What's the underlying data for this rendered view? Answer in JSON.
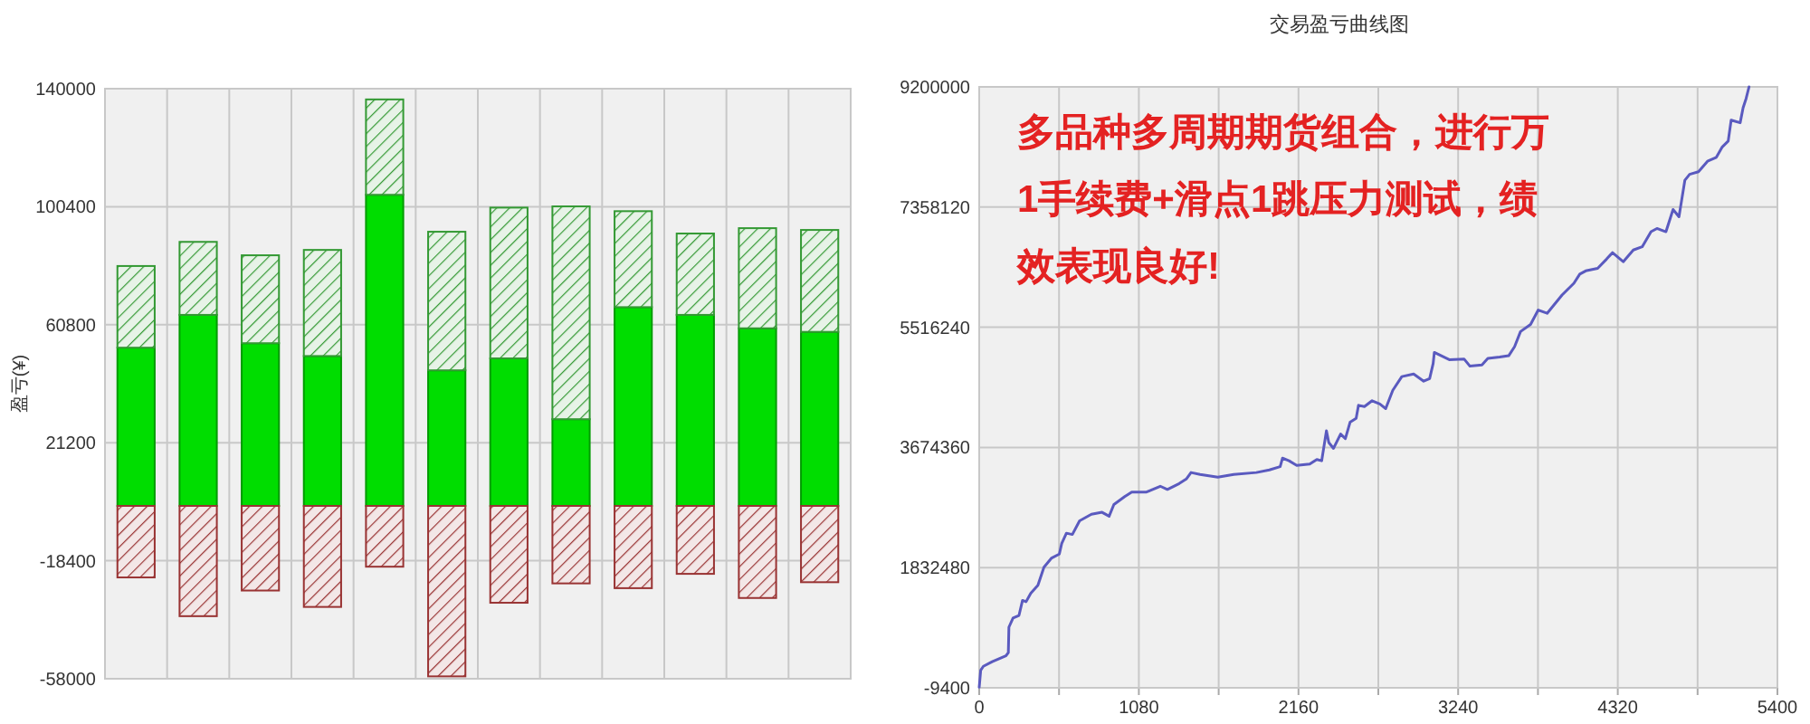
{
  "chart_data": [
    {
      "type": "bar",
      "stacked": true,
      "ylabel": "盈亏(¥)",
      "categories": [
        null,
        null,
        null,
        null,
        null,
        null,
        null,
        null,
        null,
        null,
        null,
        null
      ],
      "ylim": [
        -58000,
        140000
      ],
      "yticks": [
        -58000,
        -18400,
        21200,
        60800,
        100400,
        140000
      ],
      "grid": true,
      "series": [
        {
          "color": "#00dd00",
          "values": [
            53100,
            64100,
            54600,
            50300,
            104400,
            45500,
            49500,
            29100,
            66700,
            64100,
            59600,
            58400
          ]
        },
        {
          "color": "#339933",
          "values": [
            27400,
            24500,
            29500,
            35600,
            32000,
            46500,
            50600,
            71400,
            32200,
            27300,
            33600,
            34200
          ]
        },
        {
          "color": "#993333",
          "values": [
            -24000,
            -37000,
            -28400,
            -33900,
            -20400,
            -57200,
            -32500,
            -26000,
            -27600,
            -22800,
            -30900,
            -25600
          ]
        }
      ]
    },
    {
      "type": "line",
      "title": "交易盈亏曲线图",
      "xlim": [
        0,
        5400
      ],
      "xticks": [
        0,
        {
          "value": 540,
          "label": null
        },
        1080,
        {
          "value": 1620,
          "label": null
        },
        2160,
        {
          "value": 2700,
          "label": null
        },
        3240,
        {
          "value": 3780,
          "label": null
        },
        4320,
        {
          "value": 4860,
          "label": null
        },
        5400
      ],
      "ylim": [
        -9400,
        9200000
      ],
      "yticks": [
        -9400,
        1832480,
        3674360,
        5516240,
        7358120,
        9200000
      ],
      "grid": true,
      "annotations": [
        "多品种多周期期货组合，进行万1手续费+滑点1跳压力测试，绩效表现良好!"
      ],
      "x": [
        0,
        10,
        28,
        88,
        181,
        197,
        201,
        229,
        269,
        293,
        317,
        349,
        397,
        438,
        490,
        542,
        558,
        590,
        630,
        679,
        759,
        831,
        879,
        911,
        984,
        1032,
        1132,
        1225,
        1273,
        1353,
        1401,
        1433,
        1494,
        1614,
        1722,
        1875,
        1963,
        2036,
        2052,
        2096,
        2148,
        2236,
        2284,
        2317,
        2349,
        2365,
        2397,
        2445,
        2477,
        2509,
        2550,
        2566,
        2606,
        2658,
        2710,
        2750,
        2798,
        2859,
        2939,
        3007,
        3047,
        3071,
        3079,
        3180,
        3280,
        3320,
        3401,
        3441,
        3521,
        3582,
        3622,
        3662,
        3730,
        3782,
        3842,
        3943,
        4023,
        4063,
        4103,
        4184,
        4244,
        4284,
        4357,
        4425,
        4485,
        4545,
        4585,
        4646,
        4694,
        4734,
        4774,
        4806,
        4866,
        4927,
        4987,
        5027,
        5067,
        5087,
        5148,
        5168,
        5188,
        5208
      ],
      "series": [
        {
          "color": "#5a5abf",
          "values": [
            0,
            260000,
            320000,
            390000,
            480000,
            530000,
            920000,
            1060000,
            1100000,
            1330000,
            1310000,
            1440000,
            1560000,
            1840000,
            1980000,
            2040000,
            2200000,
            2360000,
            2340000,
            2550000,
            2650000,
            2680000,
            2620000,
            2800000,
            2920000,
            2990000,
            2990000,
            3080000,
            3030000,
            3120000,
            3190000,
            3290000,
            3260000,
            3220000,
            3260000,
            3290000,
            3330000,
            3380000,
            3510000,
            3470000,
            3400000,
            3420000,
            3490000,
            3470000,
            3930000,
            3750000,
            3660000,
            3880000,
            3810000,
            4060000,
            4120000,
            4320000,
            4300000,
            4390000,
            4340000,
            4270000,
            4550000,
            4760000,
            4800000,
            4690000,
            4730000,
            4960000,
            5130000,
            5020000,
            5030000,
            4920000,
            4940000,
            5040000,
            5060000,
            5080000,
            5220000,
            5450000,
            5560000,
            5780000,
            5730000,
            6010000,
            6190000,
            6330000,
            6380000,
            6420000,
            6560000,
            6660000,
            6520000,
            6700000,
            6750000,
            6980000,
            7030000,
            6980000,
            7320000,
            7210000,
            7770000,
            7860000,
            7900000,
            8060000,
            8120000,
            8280000,
            8370000,
            8690000,
            8650000,
            8880000,
            9020000,
            9200000
          ]
        }
      ]
    }
  ]
}
